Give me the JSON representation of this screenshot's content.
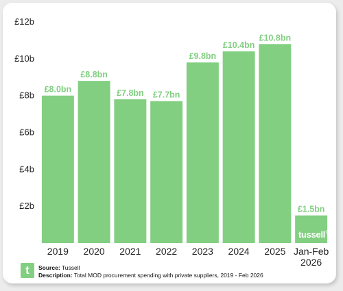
{
  "chart_data": {
    "type": "bar",
    "categories": [
      "2019",
      "2020",
      "2021",
      "2022",
      "2023",
      "2024",
      "2025",
      "Jan-Feb|2026"
    ],
    "values": [
      8.0,
      8.8,
      7.8,
      7.7,
      9.8,
      10.4,
      10.8,
      1.5
    ],
    "data_labels": [
      "£8.0bn",
      "£8.8bn",
      "£7.8bn",
      "£7.7bn",
      "£9.8bn",
      "£10.4bn",
      "£10.8bn",
      "£1.5bn"
    ],
    "yticks": [
      2,
      4,
      6,
      8,
      10,
      12
    ],
    "ytick_labels": [
      "£2b",
      "£4b",
      "£6b",
      "£8b",
      "£10b",
      "£12b"
    ],
    "ylim": [
      0,
      12
    ],
    "grid": false,
    "bar_color": "#82cf82"
  },
  "footer": {
    "logo_letter": "t",
    "source_label": "Source:",
    "source_value": "Tussell",
    "description_label": "Description:",
    "description_value": "Total MOD procurement spending with private suppliers, 2019 - Feb 2026"
  },
  "watermark": "tussell"
}
